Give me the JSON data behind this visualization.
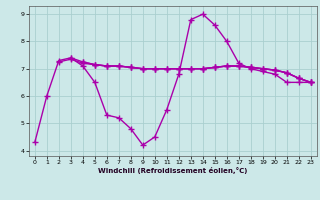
{
  "title": "",
  "xlabel": "Windchill (Refroidissement éolien,°C)",
  "ylabel": "",
  "xlim": [
    -0.5,
    23.5
  ],
  "ylim": [
    3.8,
    9.3
  ],
  "yticks": [
    4,
    5,
    6,
    7,
    8,
    9
  ],
  "xticks": [
    0,
    1,
    2,
    3,
    4,
    5,
    6,
    7,
    8,
    9,
    10,
    11,
    12,
    13,
    14,
    15,
    16,
    17,
    18,
    19,
    20,
    21,
    22,
    23
  ],
  "bg_color": "#cce8e8",
  "grid_color": "#aacfcf",
  "line_color": "#aa00aa",
  "line_width": 1.0,
  "marker": "+",
  "markersize": 4,
  "markeredgewidth": 1.0,
  "series": [
    [
      4.3,
      6.0,
      7.3,
      7.4,
      7.1,
      6.5,
      5.3,
      5.2,
      4.8,
      4.2,
      4.5,
      5.5,
      6.8,
      8.8,
      9.0,
      8.6,
      8.0,
      7.2,
      7.0,
      6.9,
      6.8,
      6.5,
      6.5,
      6.5
    ],
    [
      null,
      null,
      7.25,
      7.35,
      7.2,
      7.15,
      7.1,
      7.1,
      7.05,
      7.0,
      7.0,
      7.0,
      7.0,
      7.0,
      7.0,
      7.05,
      7.1,
      7.1,
      7.05,
      7.0,
      6.95,
      6.85,
      6.65,
      6.5
    ],
    [
      null,
      null,
      null,
      7.4,
      7.25,
      7.15,
      7.1,
      7.1,
      7.05,
      7.0,
      7.0,
      7.0,
      7.0,
      7.0,
      7.0,
      7.05,
      7.1,
      7.1,
      7.05,
      7.0,
      6.95,
      6.85,
      6.65,
      6.5
    ],
    [
      null,
      null,
      null,
      null,
      7.25,
      7.15,
      7.1,
      7.1,
      7.05,
      7.0,
      7.0,
      7.0,
      7.0,
      7.0,
      7.0,
      7.05,
      7.1,
      7.1,
      7.05,
      7.0,
      6.95,
      6.85,
      6.65,
      6.5
    ]
  ]
}
